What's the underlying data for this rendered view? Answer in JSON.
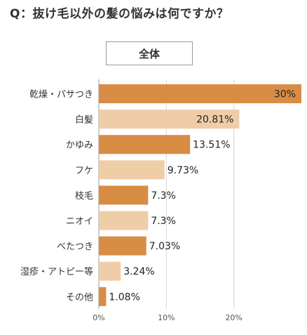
{
  "question": "Q：抜け毛以外の髪の悩みは何ですか？",
  "segment_label": "全体",
  "colors": {
    "dark": "#d88c44",
    "light": "#efcda7",
    "grid": "#d6d6d6",
    "axis": "#999999"
  },
  "chart_data": {
    "type": "bar",
    "orientation": "horizontal",
    "categories": [
      "乾燥・パサつき",
      "白髪",
      "かゆみ",
      "フケ",
      "枝毛",
      "ニオイ",
      "べたつき",
      "湿疹・アトピー等",
      "その他"
    ],
    "values": [
      30,
      20.81,
      13.51,
      9.73,
      7.3,
      7.3,
      7.03,
      3.24,
      1.08
    ],
    "value_labels": [
      "30%",
      "20.81%",
      "13.51%",
      "9.73%",
      "7.3%",
      "7.3%",
      "7.03%",
      "3.24%",
      "1.08%"
    ],
    "xticks": [
      "0%",
      "10%",
      "20%"
    ],
    "xtick_values": [
      0,
      10,
      20
    ],
    "xlim": [
      0,
      30
    ],
    "grid": true
  }
}
